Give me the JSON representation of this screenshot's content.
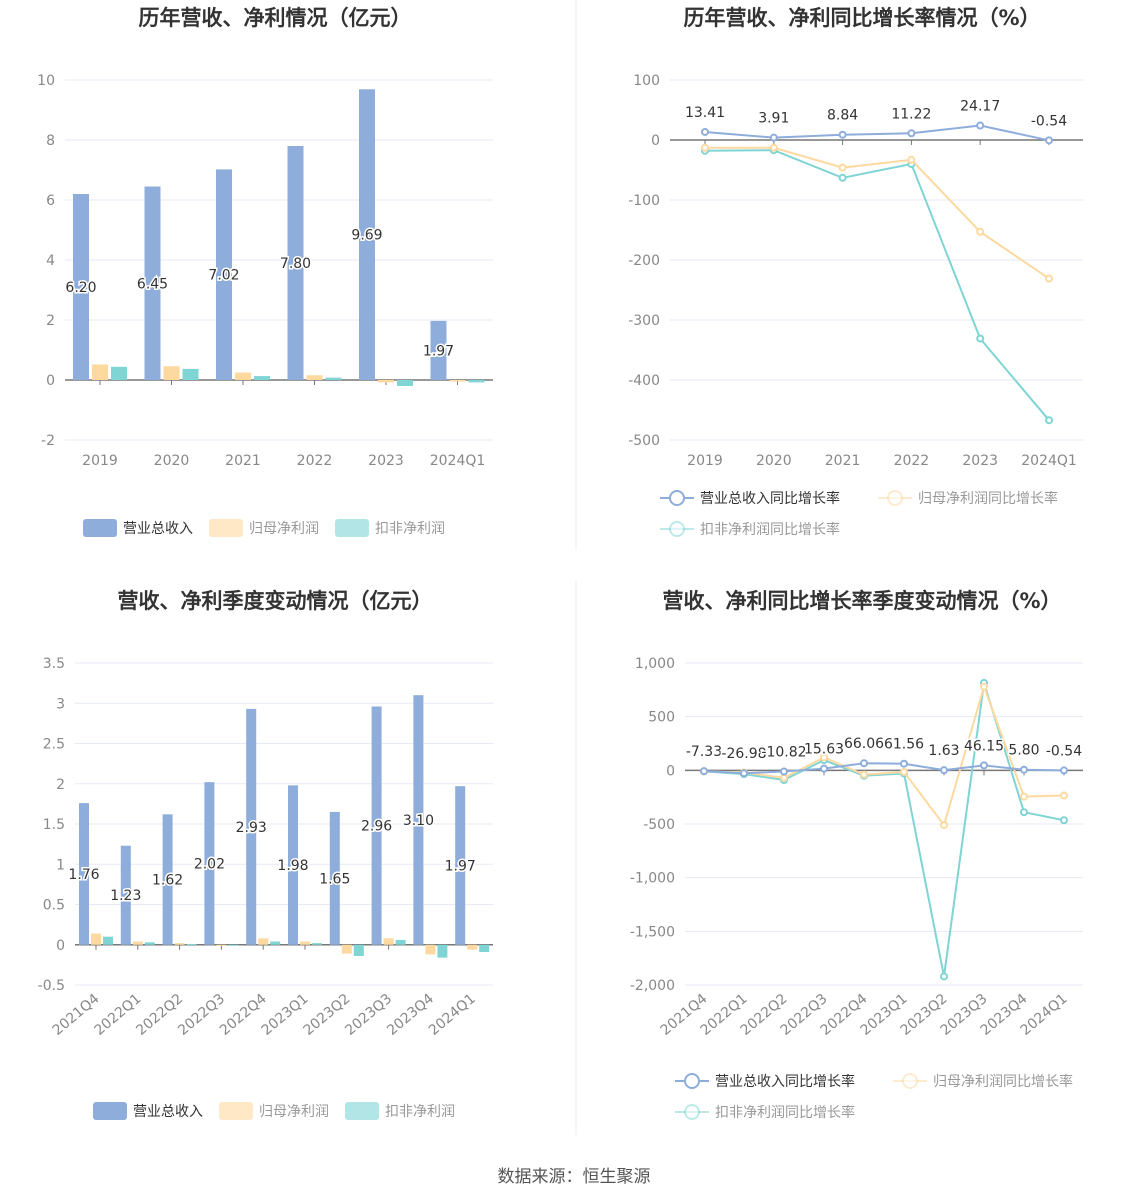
{
  "source": "数据来源：恒生聚源",
  "colors": {
    "revenue": "#8eaddb",
    "net_profit": "#fdd9a0",
    "deducted": "#7fd4d4",
    "net_profit_line": "#fcd99a",
    "deducted_line": "#7fd4d4"
  },
  "chart_data": [
    {
      "type": "bar",
      "title": "历年营收、净利情况（亿元）",
      "categories": [
        "2019",
        "2020",
        "2021",
        "2022",
        "2023",
        "2024Q1"
      ],
      "ylim": [
        -2,
        10
      ],
      "yticks": [
        "10",
        "8",
        "6",
        "4",
        "2",
        "0",
        "-2"
      ],
      "grid": true,
      "legend_placement": "bottom",
      "series": [
        {
          "name": "营业总收入",
          "values": [
            6.2,
            6.45,
            7.02,
            7.8,
            9.69,
            1.97
          ],
          "labels": [
            "6.20",
            "6.45",
            "7.02",
            "7.80",
            "9.69",
            "1.97"
          ]
        },
        {
          "name": "归母净利润",
          "values": [
            0.52,
            0.46,
            0.25,
            0.16,
            -0.08,
            -0.05
          ]
        },
        {
          "name": "扣非净利润",
          "values": [
            0.44,
            0.37,
            0.13,
            0.08,
            -0.2,
            -0.08
          ]
        }
      ]
    },
    {
      "type": "line",
      "title": "历年营收、净利同比增长率情况（%）",
      "categories": [
        "2019",
        "2020",
        "2021",
        "2022",
        "2023",
        "2024Q1"
      ],
      "ylim": [
        -500,
        100
      ],
      "yticks": [
        "100",
        "0",
        "-100",
        "-200",
        "-300",
        "-400",
        "-500"
      ],
      "grid": true,
      "legend_placement": "bottom",
      "series": [
        {
          "name": "营业总收入同比增长率",
          "values": [
            13.41,
            3.91,
            8.84,
            11.22,
            24.17,
            -0.54
          ],
          "labels": [
            "13.41",
            "3.91",
            "8.84",
            "11.22",
            "24.17",
            "-0.54"
          ]
        },
        {
          "name": "归母净利润同比增长率",
          "values": [
            -13,
            -13,
            -46,
            -33,
            -153,
            -231
          ]
        },
        {
          "name": "扣非净利润同比增长率",
          "values": [
            -18,
            -17,
            -63,
            -40,
            -331,
            -467
          ]
        }
      ]
    },
    {
      "type": "bar",
      "title": "营收、净利季度变动情况（亿元）",
      "categories": [
        "2021Q4",
        "2022Q1",
        "2022Q2",
        "2022Q3",
        "2022Q4",
        "2023Q1",
        "2023Q2",
        "2023Q3",
        "2023Q4",
        "2024Q1"
      ],
      "ylim": [
        -0.5,
        3.5
      ],
      "yticks": [
        "3.5",
        "3",
        "2.5",
        "2",
        "1.5",
        "1",
        "0.5",
        "0",
        "-0.5"
      ],
      "grid": true,
      "legend_placement": "bottom",
      "series": [
        {
          "name": "营业总收入",
          "values": [
            1.76,
            1.23,
            1.62,
            2.02,
            2.93,
            1.98,
            1.65,
            2.96,
            3.1,
            1.97
          ],
          "labels": [
            "1.76",
            "1.23",
            "1.62",
            "2.02",
            "2.93",
            "1.98",
            "1.65",
            "2.96",
            "3.10",
            "1.97"
          ]
        },
        {
          "name": "归母净利润",
          "values": [
            0.14,
            0.04,
            0.02,
            -0.01,
            0.08,
            0.04,
            -0.11,
            0.08,
            -0.12,
            -0.06
          ]
        },
        {
          "name": "扣非净利润",
          "values": [
            0.1,
            0.03,
            0.01,
            -0.01,
            0.04,
            0.02,
            -0.14,
            0.06,
            -0.16,
            -0.09
          ]
        }
      ]
    },
    {
      "type": "line",
      "title": "营收、净利同比增长率季度变动情况（%）",
      "categories": [
        "2021Q4",
        "2022Q1",
        "2022Q2",
        "2022Q3",
        "2022Q4",
        "2023Q1",
        "2023Q2",
        "2023Q3",
        "2023Q4",
        "2024Q1"
      ],
      "ylim": [
        -2000,
        1000
      ],
      "yticks": [
        "1,000",
        "500",
        "0",
        "-500",
        "-1,000",
        "-1,500",
        "-2,000"
      ],
      "grid": true,
      "legend_placement": "bottom",
      "series": [
        {
          "name": "营业总收入同比增长率",
          "values": [
            -7.33,
            -26.98,
            -10.82,
            15.63,
            66.06,
            61.56,
            1.63,
            46.15,
            5.8,
            -0.54
          ],
          "labels": [
            "-7.33",
            "-26.98",
            "-10.82",
            "15.63",
            "66.06",
            "61.56",
            "1.63",
            "46.15",
            "5.80",
            "-0.54"
          ]
        },
        {
          "name": "归母净利润同比增长率",
          "values": [
            -10,
            -20,
            -70,
            120,
            -40,
            -15,
            -510,
            780,
            -245,
            -235
          ]
        },
        {
          "name": "扣非净利润同比增长率",
          "values": [
            -10,
            -35,
            -90,
            95,
            -50,
            -30,
            -1920,
            815,
            -390,
            -465
          ]
        }
      ]
    }
  ]
}
